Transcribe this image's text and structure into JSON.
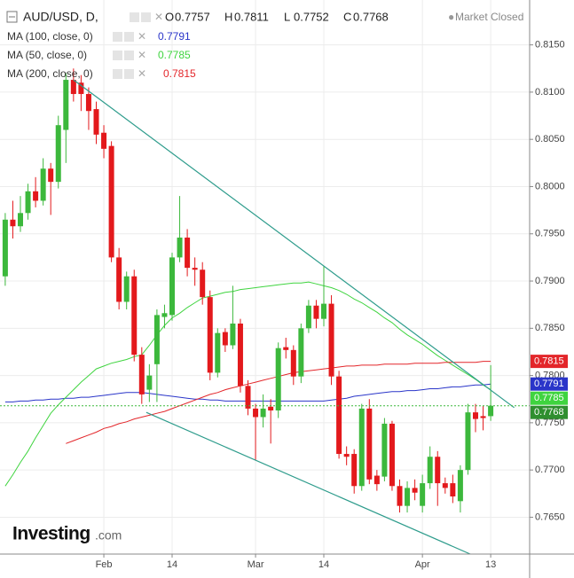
{
  "chart_data": {
    "type": "candlestick",
    "title": "AUD/USD, D,",
    "status": "Market Closed",
    "ohlc_labels": [
      "O",
      "H",
      "L",
      "C"
    ],
    "categories": [
      null,
      null,
      null,
      null,
      null,
      null,
      null,
      null,
      null,
      null,
      null,
      null,
      null,
      "Feb",
      null,
      null,
      null,
      null,
      null,
      null,
      null,
      null,
      "14",
      null,
      null,
      null,
      null,
      null,
      null,
      null,
      null,
      null,
      null,
      "Mar",
      null,
      null,
      null,
      null,
      null,
      null,
      null,
      null,
      "14",
      null,
      null,
      null,
      null,
      null,
      null,
      null,
      null,
      null,
      null,
      null,
      null,
      "Apr",
      null,
      null,
      null,
      null,
      null,
      null,
      null,
      null,
      "13"
    ],
    "open": [
      0.7905,
      0.7965,
      0.7958,
      0.7972,
      0.7995,
      0.7985,
      0.8019,
      0.8005,
      0.806,
      0.8113,
      0.811,
      0.8098,
      0.8082,
      0.8057,
      0.8043,
      0.7925,
      0.7878,
      0.7905,
      0.7822,
      0.7785,
      0.7812,
      0.7862,
      0.7864,
      0.7925,
      0.7946,
      0.7914,
      0.7912,
      0.7883,
      0.7803,
      0.7846,
      0.7832,
      0.7855,
      0.7789,
      0.7765,
      0.7756,
      0.7767,
      0.7763,
      0.783,
      0.7827,
      0.7799,
      0.785,
      0.7874,
      0.786,
      0.7876,
      0.7799,
      0.7717,
      0.7717,
      0.7683,
      0.7765,
      0.7694,
      0.7693,
      0.7749,
      0.7683,
      0.7662,
      0.7681,
      0.7662,
      0.7686,
      0.7714,
      0.7686,
      0.7686,
      0.7667,
      0.77,
      0.7761,
      0.7757,
      0.7757
    ],
    "high": [
      0.7972,
      0.7985,
      0.799,
      0.8003,
      0.801,
      0.803,
      0.8025,
      0.8075,
      0.812,
      0.8125,
      0.8118,
      0.8105,
      0.809,
      0.8065,
      0.8048,
      0.7935,
      0.791,
      0.7912,
      0.783,
      0.7812,
      0.787,
      0.7875,
      0.793,
      0.799,
      0.7955,
      0.7925,
      0.792,
      0.789,
      0.785,
      0.785,
      0.7895,
      0.786,
      0.7795,
      0.777,
      0.778,
      0.7775,
      0.7835,
      0.784,
      0.7832,
      0.7855,
      0.788,
      0.788,
      0.7916,
      0.7885,
      0.7805,
      0.7725,
      0.7722,
      0.777,
      0.7775,
      0.77,
      0.7755,
      0.7752,
      0.769,
      0.7688,
      0.769,
      0.7695,
      0.7725,
      0.772,
      0.7692,
      0.7695,
      0.7705,
      0.777,
      0.777,
      0.7768,
      0.7811
    ],
    "low": [
      0.7895,
      0.7945,
      0.7952,
      0.7965,
      0.7978,
      0.798,
      0.797,
      0.7998,
      0.8025,
      0.809,
      0.808,
      0.806,
      0.8045,
      0.803,
      0.792,
      0.787,
      0.787,
      0.7815,
      0.777,
      0.7772,
      0.7772,
      0.785,
      0.7858,
      0.792,
      0.7905,
      0.7895,
      0.7875,
      0.7795,
      0.7798,
      0.7825,
      0.7828,
      0.7782,
      0.7758,
      0.771,
      0.7745,
      0.7728,
      0.7755,
      0.7818,
      0.779,
      0.7792,
      0.7845,
      0.785,
      0.7852,
      0.779,
      0.7712,
      0.7705,
      0.7675,
      0.7678,
      0.7685,
      0.7678,
      0.7688,
      0.7678,
      0.7655,
      0.7655,
      0.7668,
      0.7655,
      0.768,
      0.7662,
      0.7675,
      0.7665,
      0.7655,
      0.7695,
      0.774,
      0.7742,
      0.7752
    ],
    "close": [
      0.7965,
      0.7958,
      0.7972,
      0.7995,
      0.7985,
      0.8019,
      0.8005,
      0.8065,
      0.8113,
      0.8098,
      0.8098,
      0.808,
      0.8055,
      0.804,
      0.7925,
      0.7878,
      0.7905,
      0.7822,
      0.778,
      0.78,
      0.7864,
      0.7866,
      0.7925,
      0.7946,
      0.7914,
      0.7912,
      0.7883,
      0.7803,
      0.7845,
      0.7832,
      0.7855,
      0.7789,
      0.7765,
      0.7756,
      0.7765,
      0.7763,
      0.7829,
      0.7827,
      0.7799,
      0.785,
      0.7874,
      0.786,
      0.7876,
      0.7799,
      0.7717,
      0.7714,
      0.7683,
      0.7765,
      0.769,
      0.7685,
      0.7749,
      0.7683,
      0.7662,
      0.7681,
      0.7676,
      0.7686,
      0.7714,
      0.7686,
      0.7681,
      0.7672,
      0.77,
      0.7761,
      0.7754,
      0.7755,
      0.7768
    ],
    "up_color": "#3cb83c",
    "down_color": "#e3191c",
    "series": [
      {
        "name": "MA (100, close, 0)",
        "color": "#2a35c9",
        "values": [
          0.7772,
          0.7772,
          0.7773,
          0.7773,
          0.7774,
          0.7774,
          0.7775,
          0.7775,
          0.7776,
          0.7776,
          0.7777,
          0.7777,
          0.7778,
          0.7779,
          0.778,
          0.7781,
          0.7782,
          0.7782,
          0.7782,
          0.7781,
          0.778,
          0.7779,
          0.7778,
          0.7777,
          0.7776,
          0.7775,
          0.7775,
          0.7774,
          0.7774,
          0.7773,
          0.7773,
          0.7773,
          0.7773,
          0.7773,
          0.7773,
          0.7773,
          0.7773,
          0.7773,
          0.7773,
          0.7773,
          0.7773,
          0.7773,
          0.7773,
          0.7774,
          0.7775,
          0.7776,
          0.7778,
          0.7779,
          0.778,
          0.7781,
          0.7782,
          0.7783,
          0.7783,
          0.7784,
          0.7784,
          0.7785,
          0.7786,
          0.7786,
          0.7787,
          0.7788,
          0.7788,
          0.7789,
          0.779,
          0.779,
          0.7791
        ]
      },
      {
        "name": "MA (50, close, 0)",
        "color": "#3fd43f",
        "values": [
          0.7683,
          0.7695,
          0.7708,
          0.772,
          0.7734,
          0.7747,
          0.776,
          0.7769,
          0.7777,
          0.7785,
          0.7793,
          0.78,
          0.7807,
          0.781,
          0.7813,
          0.7815,
          0.7817,
          0.782,
          0.7822,
          0.7832,
          0.7843,
          0.7853,
          0.7861,
          0.7866,
          0.7872,
          0.7877,
          0.7882,
          0.7884,
          0.7886,
          0.7888,
          0.7889,
          0.7891,
          0.7892,
          0.7893,
          0.7894,
          0.7895,
          0.7896,
          0.7897,
          0.7898,
          0.7898,
          0.7899,
          0.7897,
          0.7895,
          0.7893,
          0.789,
          0.7886,
          0.7881,
          0.7877,
          0.7872,
          0.7867,
          0.7861,
          0.7856,
          0.7849,
          0.7843,
          0.7838,
          0.7833,
          0.7827,
          0.7821,
          0.7816,
          0.7811,
          0.7806,
          0.7801,
          0.7796,
          0.779,
          0.7785
        ]
      },
      {
        "name": "MA (200, close, 0)",
        "color": "#e3262a",
        "values": [
          null,
          null,
          null,
          null,
          null,
          null,
          null,
          null,
          0.7728,
          0.7731,
          0.7734,
          0.7737,
          0.774,
          0.7744,
          0.7746,
          0.7749,
          0.7751,
          0.7754,
          0.7756,
          0.7758,
          0.776,
          0.7762,
          0.7765,
          0.7768,
          0.7771,
          0.7774,
          0.7777,
          0.778,
          0.7782,
          0.7785,
          0.7787,
          0.7789,
          0.7791,
          0.7793,
          0.7795,
          0.7797,
          0.7799,
          0.7801,
          0.7803,
          0.7804,
          0.7805,
          0.7806,
          0.7807,
          0.7808,
          0.7809,
          0.781,
          0.781,
          0.7811,
          0.7811,
          0.7811,
          0.7812,
          0.7812,
          0.7812,
          0.7812,
          0.7813,
          0.7813,
          0.7813,
          0.7813,
          0.7814,
          0.7814,
          0.7814,
          0.7814,
          0.7814,
          0.7815,
          0.7815
        ]
      }
    ],
    "trendlines": [
      {
        "color": "#2e9c8c",
        "x": [
          9,
          67.1
        ],
        "y": [
          0.8113,
          0.7766
        ]
      },
      {
        "color": "#2e9c8c",
        "x": [
          18.6,
          61.3
        ],
        "y": [
          0.7761,
          0.7611
        ]
      }
    ],
    "ylim": [
      0.7611,
      0.819
    ],
    "yticks": [
      {
        "value": 0.765,
        "label": "0.7650"
      },
      {
        "value": 0.77,
        "label": "0.7700"
      },
      {
        "value": 0.775,
        "label": "0.7750"
      },
      {
        "value": 0.78,
        "label": "0.7800"
      },
      {
        "value": 0.785,
        "label": "0.7850"
      },
      {
        "value": 0.79,
        "label": "0.7900"
      },
      {
        "value": 0.795,
        "label": "0.7950"
      },
      {
        "value": 0.8,
        "label": "0.8000"
      },
      {
        "value": 0.805,
        "label": "0.8050"
      },
      {
        "value": 0.81,
        "label": "0.8100"
      },
      {
        "value": 0.815,
        "label": "0.8150"
      }
    ],
    "grid": true,
    "logo": {
      "brand": "Investing",
      "suffix": ".com"
    }
  }
}
